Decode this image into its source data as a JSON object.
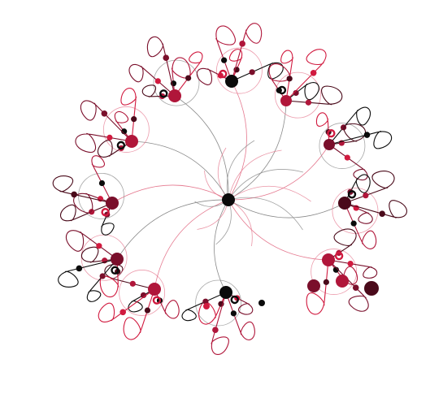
{
  "diagram": {
    "kind": "radial-curl-network",
    "palette": {
      "black": "#0b0b0b",
      "dark_maroon": "#4a0a1a",
      "maroon": "#7a0f2b",
      "crimson": "#b0163a",
      "red": "#d11a3f",
      "pink_line": "#e57a90",
      "grey_line": "#8a8a8a"
    },
    "center_node": {
      "color": "#0b0b0b"
    },
    "clusters": [
      {
        "id": "c1",
        "hub_color": "#b0163a"
      },
      {
        "id": "c2",
        "hub_color": "#0b0b0b"
      },
      {
        "id": "c3",
        "hub_color": "#b0163a"
      },
      {
        "id": "c4",
        "hub_color": "#7a0f2b"
      },
      {
        "id": "c5",
        "hub_color": "#4a0a1a"
      },
      {
        "id": "c6",
        "hub_color": "#b0163a"
      },
      {
        "id": "c7",
        "hub_color": "#0b0b0b"
      },
      {
        "id": "c8",
        "hub_color": "#b0163a"
      },
      {
        "id": "c9",
        "hub_color": "#7a0f2b"
      },
      {
        "id": "c10",
        "hub_color": "#7a0f2b"
      },
      {
        "id": "c11",
        "hub_color": "#b0163a"
      }
    ]
  }
}
